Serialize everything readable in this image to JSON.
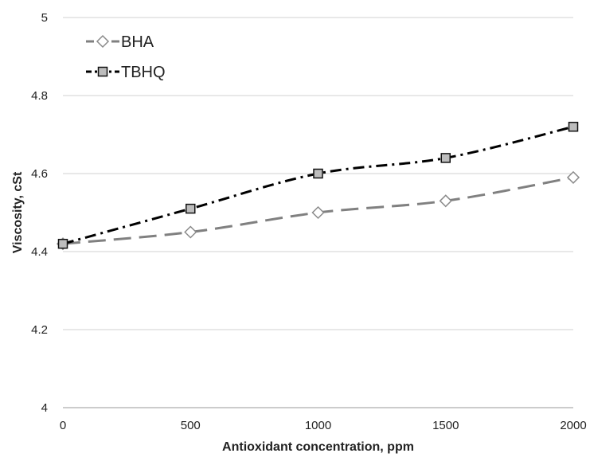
{
  "chart_data": {
    "type": "line",
    "title": "",
    "xlabel": "Antioxidant concentration, ppm",
    "ylabel": "Viscosity, cSt",
    "x": [
      0,
      500,
      1000,
      1500,
      2000
    ],
    "xlim": [
      0,
      2000
    ],
    "ylim": [
      4,
      5
    ],
    "xticks": [
      0,
      500,
      1000,
      1500,
      2000
    ],
    "yticks": [
      4,
      4.2,
      4.4,
      4.6,
      4.8,
      5
    ],
    "xtick_labels": [
      "0",
      "500",
      "1000",
      "1500",
      "2000"
    ],
    "ytick_labels": [
      "4",
      "4.2",
      "4.4",
      "4.6",
      "4.8",
      "5"
    ],
    "grid": "horizontal",
    "legend": "top-left",
    "series": [
      {
        "name": "BHA",
        "values": [
          4.42,
          4.45,
          4.5,
          4.53,
          4.59
        ],
        "color": "#808080",
        "marker": "diamond",
        "dash": "long-dash"
      },
      {
        "name": "TBHQ",
        "values": [
          4.42,
          4.51,
          4.6,
          4.64,
          4.72
        ],
        "color": "#000000",
        "marker": "square",
        "dash": "dash-dot"
      }
    ]
  }
}
